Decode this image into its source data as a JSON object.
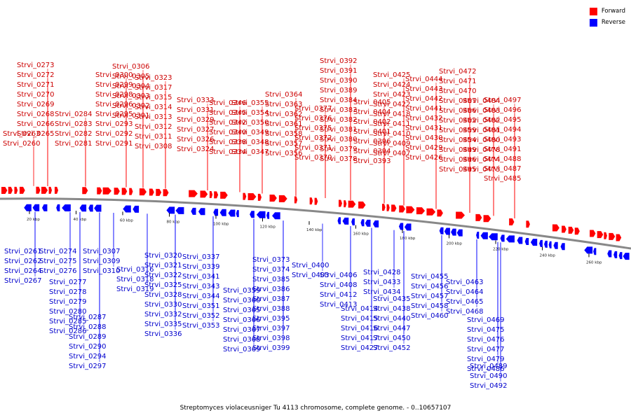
{
  "legend": {
    "forward": {
      "label": "Forward",
      "color": "#ff0000"
    },
    "reverse": {
      "label": "Reverse",
      "color": "#0000ff"
    }
  },
  "caption": "Streptomyces violaceusniger Tu 4113 chromosome, complete genome. - 0..10657107",
  "axis_ticks": [
    "20 kbp",
    "40 kbp",
    "60 kbp",
    "80 kbp",
    "100 kbp",
    "120 kbp",
    "140 kbp",
    "160 kbp",
    "180 kbp",
    "200 kbp",
    "220 kbp",
    "240 kbp",
    "260 kbp"
  ],
  "forward_genes": [
    "Strvi_0260",
    "Strvi_0263",
    "Strvi_0265",
    "Strvi_0266",
    "Strvi_0268",
    "Strvi_0269",
    "Strvi_0270",
    "Strvi_0271",
    "Strvi_0272",
    "Strvi_0273",
    "Strvi_0281",
    "Strvi_0282",
    "Strvi_0283",
    "Strvi_0284",
    "Strvi_0291",
    "Strvi_0292",
    "Strvi_0293",
    "Strvi_0295",
    "Strvi_0296",
    "Strvi_0298",
    "Strvi_0299",
    "Strvi_0300",
    "Strvi_0301",
    "Strvi_0302",
    "Strvi_0303",
    "Strvi_0304",
    "Strvi_0305",
    "Strvi_0306",
    "Strvi_0308",
    "Strvi_0311",
    "Strvi_0312",
    "Strvi_0313",
    "Strvi_0314",
    "Strvi_0315",
    "Strvi_0317",
    "Strvi_0323",
    "Strvi_0324",
    "Strvi_0326",
    "Strvi_0327",
    "Strvi_0329",
    "Strvi_0331",
    "Strvi_0333",
    "Strvi_0334",
    "Strvi_0338",
    "Strvi_0340",
    "Strvi_0342",
    "Strvi_0345",
    "Strvi_0346",
    "Strvi_0347",
    "Strvi_0348",
    "Strvi_0349",
    "Strvi_0350",
    "Strvi_0354",
    "Strvi_0355",
    "Strvi_0356",
    "Strvi_0357",
    "Strvi_0358",
    "Strvi_0361",
    "Strvi_0362",
    "Strvi_0363",
    "Strvi_0364",
    "Strvi_0370",
    "Strvi_0371",
    "Strvi_0372",
    "Strvi_0375",
    "Strvi_0376",
    "Strvi_0377",
    "Strvi_0378",
    "Strvi_0379",
    "Strvi_0380",
    "Strvi_0381",
    "Strvi_0382",
    "Strvi_0383",
    "Strvi_0384",
    "Strvi_0389",
    "Strvi_0390",
    "Strvi_0391",
    "Strvi_0392",
    "Strvi_0393",
    "Strvi_0394",
    "Strvi_0396",
    "Strvi_0401",
    "Strvi_0402",
    "Strvi_0404",
    "Strvi_0405",
    "Strvi_0407",
    "Strvi_0409",
    "Strvi_0410",
    "Strvi_0411",
    "Strvi_0418",
    "Strvi_0422",
    "Strvi_0423",
    "Strvi_0424",
    "Strvi_0425",
    "Strvi_0426",
    "Strvi_0429",
    "Strvi_0430",
    "Strvi_0431",
    "Strvi_0432",
    "Strvi_0441",
    "Strvi_0442",
    "Strvi_0443",
    "Strvi_0444",
    "Strvi_0445",
    "Strvi_0446",
    "Strvi_0449",
    "Strvi_0454",
    "Strvi_0459",
    "Strvi_0462",
    "Strvi_0466",
    "Strvi_0467",
    "Strvi_0470",
    "Strvi_0471",
    "Strvi_0472",
    "Strvi_0473",
    "Strvi_0474",
    "Strvi_0478",
    "Strvi_0480",
    "Strvi_0481",
    "Strvi_0482",
    "Strvi_0483",
    "Strvi_0484",
    "Strvi_0485",
    "Strvi_0487",
    "Strvi_0488",
    "Strvi_0491",
    "Strvi_0493",
    "Strvi_0494",
    "Strvi_0495",
    "Strvi_0496",
    "Strvi_0497"
  ],
  "reverse_genes": [
    "Strvi_0261",
    "Strvi_0262",
    "Strvi_0264",
    "Strvi_0267",
    "Strvi_0274",
    "Strvi_0275",
    "Strvi_0276",
    "Strvi_0277",
    "Strvi_0278",
    "Strvi_0279",
    "Strvi_0280",
    "Strvi_0285",
    "Strvi_0286",
    "Strvi_0287",
    "Strvi_0288",
    "Strvi_0289",
    "Strvi_0290",
    "Strvi_0294",
    "Strvi_0297",
    "Strvi_0307",
    "Strvi_0309",
    "Strvi_0310",
    "Strvi_0316",
    "Strvi_0318",
    "Strvi_0319",
    "Strvi_0320",
    "Strvi_0321",
    "Strvi_0322",
    "Strvi_0325",
    "Strvi_0328",
    "Strvi_0330",
    "Strvi_0332",
    "Strvi_0335",
    "Strvi_0336",
    "Strvi_0337",
    "Strvi_0339",
    "Strvi_0341",
    "Strvi_0343",
    "Strvi_0344",
    "Strvi_0351",
    "Strvi_0352",
    "Strvi_0353",
    "Strvi_0359",
    "Strvi_0360",
    "Strvi_0365",
    "Strvi_0366",
    "Strvi_0367",
    "Strvi_0368",
    "Strvi_0369",
    "Strvi_0373",
    "Strvi_0374",
    "Strvi_0385",
    "Strvi_0386",
    "Strvi_0387",
    "Strvi_0388",
    "Strvi_0395",
    "Strvi_0397",
    "Strvi_0398",
    "Strvi_0399",
    "Strvi_0400",
    "Strvi_0403",
    "Strvi_0406",
    "Strvi_0408",
    "Strvi_0412",
    "Strvi_0413",
    "Strvi_0414",
    "Strvi_0415",
    "Strvi_0416",
    "Strvi_0417",
    "Strvi_0427",
    "Strvi_0428",
    "Strvi_0433",
    "Strvi_0434",
    "Strvi_0435",
    "Strvi_0438",
    "Strvi_0440",
    "Strvi_0447",
    "Strvi_0450",
    "Strvi_0452",
    "Strvi_0455",
    "Strvi_0456",
    "Strvi_0457",
    "Strvi_0458",
    "Strvi_0460",
    "Strvi_0463",
    "Strvi_0464",
    "Strvi_0465",
    "Strvi_0468",
    "Strvi_0469",
    "Strvi_0475",
    "Strvi_0476",
    "Strvi_0477",
    "Strvi_0479",
    "Strvi_0486",
    "Strvi_0489",
    "Strvi_0490",
    "Strvi_0492"
  ]
}
